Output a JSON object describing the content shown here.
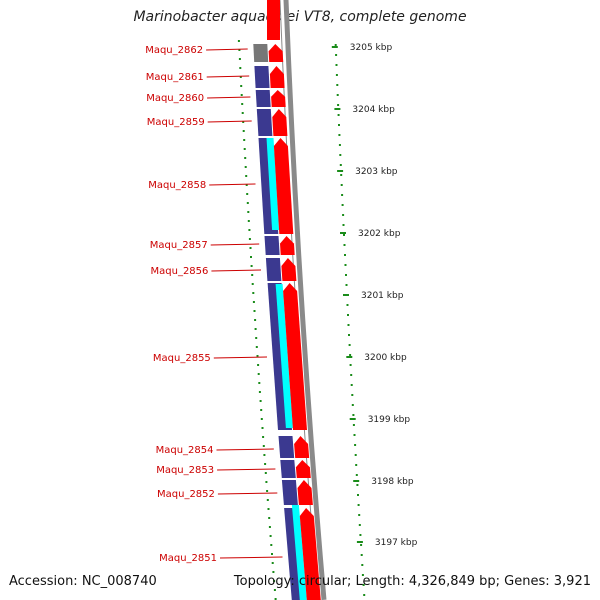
{
  "header": {
    "title": "Marinobacter aquaeolei VT8, complete genome"
  },
  "footer": {
    "accession": "Accession: NC_008740",
    "summary": "Topology: circular; Length: 4,326,849 bp; Genes: 3,921"
  },
  "colors": {
    "forward_cds": "#ff0000",
    "reverse_cds": "#3b3990",
    "rna_cyan": "#00ffff",
    "backbone": "#8a8a8a",
    "ticks": "#1a8c1a",
    "gene_label": "#cc0000",
    "separator": "#ffffff"
  },
  "scale_labels": [
    "3205 kbp",
    "3204 kbp",
    "3203 kbp",
    "3202 kbp",
    "3201 kbp",
    "3200 kbp",
    "3199 kbp",
    "3198 kbp",
    "3197 kbp"
  ],
  "genes": [
    {
      "name": "Maqu_2862"
    },
    {
      "name": "Maqu_2861"
    },
    {
      "name": "Maqu_2860"
    },
    {
      "name": "Maqu_2859"
    },
    {
      "name": "Maqu_2858"
    },
    {
      "name": "Maqu_2857"
    },
    {
      "name": "Maqu_2856"
    },
    {
      "name": "Maqu_2855"
    },
    {
      "name": "Maqu_2854"
    },
    {
      "name": "Maqu_2853"
    },
    {
      "name": "Maqu_2852"
    },
    {
      "name": "Maqu_2851"
    }
  ]
}
